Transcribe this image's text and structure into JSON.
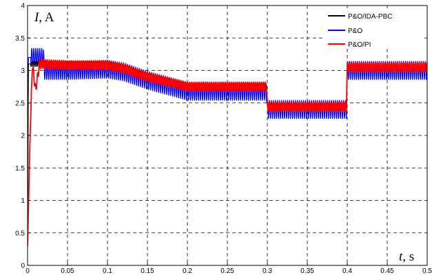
{
  "chart_data": {
    "type": "line",
    "title": "",
    "xlabel": {
      "var": "t",
      "unit": ", s"
    },
    "ylabel": {
      "var": "I",
      "unit": ", A"
    },
    "xlim": [
      0,
      0.5
    ],
    "ylim": [
      0,
      4
    ],
    "xticks": [
      "0",
      "0.05",
      "0.1",
      "0.15",
      "0.2",
      "0.25",
      "0.3",
      "0.35",
      "0.4",
      "0.45",
      "0.5"
    ],
    "yticks": [
      "0",
      "0.5",
      "1",
      "1.5",
      "2",
      "2.5",
      "3",
      "3.5",
      "4"
    ],
    "grid": true,
    "legend_position": "top-right",
    "series": [
      {
        "name": "P&O/IDA-PBC",
        "color": "#000000",
        "ripple": 0.04,
        "points": [
          [
            0,
            0.3
          ],
          [
            0.001,
            3.1
          ],
          [
            0.01,
            3.1
          ],
          [
            0.02,
            3.1
          ],
          [
            0.05,
            3.1
          ],
          [
            0.1,
            3.1
          ],
          [
            0.12,
            3.05
          ],
          [
            0.15,
            2.92
          ],
          [
            0.2,
            2.76
          ],
          [
            0.299,
            2.76
          ],
          [
            0.3,
            2.45
          ],
          [
            0.399,
            2.45
          ],
          [
            0.4,
            3.05
          ],
          [
            0.5,
            3.05
          ]
        ]
      },
      {
        "name": "P&O",
        "color": "#0000ff",
        "ripple": 0.14,
        "points": [
          [
            0,
            0.3
          ],
          [
            0.001,
            3.2
          ],
          [
            0.02,
            3.2
          ],
          [
            0.021,
            3.0
          ],
          [
            0.05,
            3.0
          ],
          [
            0.1,
            3.02
          ],
          [
            0.12,
            2.98
          ],
          [
            0.15,
            2.85
          ],
          [
            0.2,
            2.68
          ],
          [
            0.299,
            2.68
          ],
          [
            0.3,
            2.4
          ],
          [
            0.399,
            2.4
          ],
          [
            0.4,
            3.0
          ],
          [
            0.5,
            3.0
          ]
        ]
      },
      {
        "name": "P&O/PI",
        "color": "#ff0000",
        "ripple": 0.07,
        "points": [
          [
            0,
            0.3
          ],
          [
            0.003,
            1.9
          ],
          [
            0.006,
            3.1
          ],
          [
            0.01,
            2.7
          ],
          [
            0.015,
            3.1
          ],
          [
            0.05,
            3.08
          ],
          [
            0.1,
            3.08
          ],
          [
            0.12,
            3.03
          ],
          [
            0.15,
            2.9
          ],
          [
            0.2,
            2.75
          ],
          [
            0.299,
            2.75
          ],
          [
            0.3,
            2.44
          ],
          [
            0.399,
            2.44
          ],
          [
            0.4,
            3.05
          ],
          [
            0.5,
            3.05
          ]
        ]
      }
    ]
  }
}
